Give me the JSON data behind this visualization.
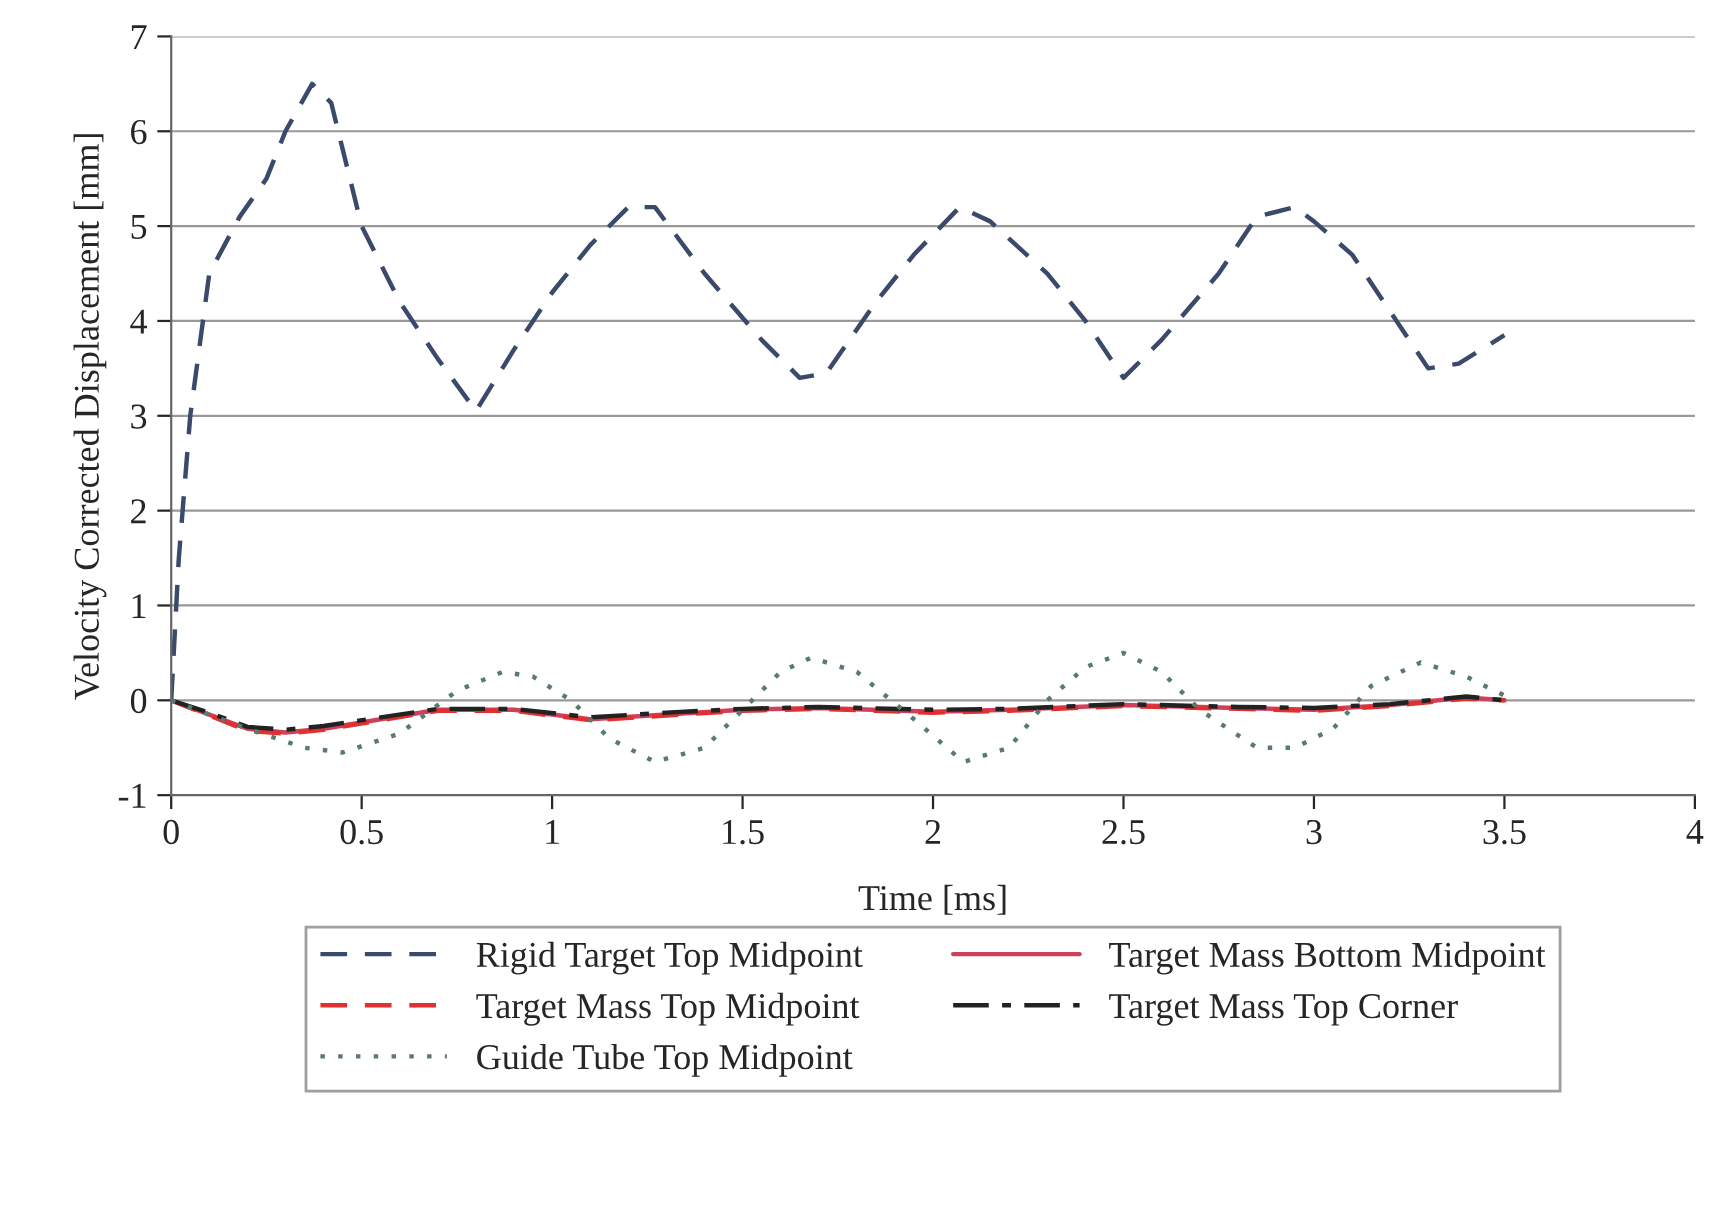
{
  "chart_data": {
    "type": "line",
    "xlabel": "Time [ms]",
    "ylabel": "Velocity Corrected Displacement [mm]",
    "xlim": [
      0,
      4
    ],
    "xticks": [
      0,
      0.5,
      1,
      1.5,
      2,
      2.5,
      3,
      3.5,
      4
    ],
    "ylim": [
      -1,
      7
    ],
    "yticks": [
      -1,
      0,
      1,
      2,
      3,
      4,
      5,
      6,
      7
    ],
    "grid": "y",
    "legend": "bottom",
    "series": [
      {
        "name": "Rigid Target Top Midpoint",
        "color": "#3a4a6b",
        "line_style": "dashed",
        "x": [
          0,
          0.02,
          0.05,
          0.1,
          0.18,
          0.25,
          0.3,
          0.37,
          0.42,
          0.5,
          0.6,
          0.7,
          0.8,
          0.9,
          1.0,
          1.1,
          1.2,
          1.27,
          1.4,
          1.55,
          1.65,
          1.72,
          1.85,
          1.95,
          2.07,
          2.15,
          2.3,
          2.4,
          2.5,
          2.6,
          2.75,
          2.85,
          2.95,
          3.0,
          3.1,
          3.2,
          3.3,
          3.38,
          3.5
        ],
        "values": [
          0,
          1.5,
          3,
          4.5,
          5.1,
          5.5,
          6.0,
          6.5,
          6.3,
          5.0,
          4.2,
          3.6,
          3.05,
          3.7,
          4.3,
          4.8,
          5.2,
          5.2,
          4.5,
          3.8,
          3.4,
          3.45,
          4.2,
          4.7,
          5.2,
          5.05,
          4.5,
          4.0,
          3.4,
          3.8,
          4.5,
          5.1,
          5.2,
          5.05,
          4.7,
          4.1,
          3.5,
          3.55,
          3.85
        ]
      },
      {
        "name": "Target Mass Bottom Midpoint",
        "color": "#d0405a",
        "line_style": "solid",
        "x": [
          0,
          0.1,
          0.2,
          0.3,
          0.4,
          0.55,
          0.7,
          0.9,
          1.1,
          1.3,
          1.5,
          1.7,
          2.0,
          2.2,
          2.5,
          2.8,
          3.0,
          3.2,
          3.4,
          3.5
        ],
        "values": [
          0,
          -0.15,
          -0.3,
          -0.34,
          -0.3,
          -0.2,
          -0.1,
          -0.1,
          -0.2,
          -0.15,
          -0.1,
          -0.08,
          -0.12,
          -0.1,
          -0.05,
          -0.08,
          -0.1,
          -0.05,
          0.03,
          0
        ]
      },
      {
        "name": "Target Mass Top Midpoint",
        "color": "#e03030",
        "line_style": "dashed",
        "x": [
          0,
          0.1,
          0.2,
          0.3,
          0.4,
          0.55,
          0.7,
          0.9,
          1.1,
          1.3,
          1.5,
          1.7,
          2.0,
          2.2,
          2.5,
          2.8,
          3.0,
          3.2,
          3.4,
          3.5
        ],
        "values": [
          0,
          -0.16,
          -0.32,
          -0.35,
          -0.31,
          -0.21,
          -0.11,
          -0.11,
          -0.21,
          -0.16,
          -0.11,
          -0.09,
          -0.13,
          -0.11,
          -0.06,
          -0.09,
          -0.11,
          -0.06,
          0.02,
          0
        ]
      },
      {
        "name": "Target Mass Top Corner",
        "color": "#222222",
        "line_style": "dashdot",
        "x": [
          0,
          0.1,
          0.2,
          0.3,
          0.4,
          0.55,
          0.7,
          0.9,
          1.1,
          1.3,
          1.5,
          1.7,
          2.0,
          2.2,
          2.5,
          2.8,
          3.0,
          3.2,
          3.4,
          3.5
        ],
        "values": [
          0,
          -0.13,
          -0.28,
          -0.31,
          -0.27,
          -0.18,
          -0.09,
          -0.09,
          -0.18,
          -0.13,
          -0.09,
          -0.07,
          -0.1,
          -0.09,
          -0.04,
          -0.07,
          -0.08,
          -0.04,
          0.04,
          0
        ]
      },
      {
        "name": "Guide Tube Top Midpoint",
        "color": "#5a7a70",
        "line_style": "dotted",
        "x": [
          0,
          0.2,
          0.35,
          0.45,
          0.6,
          0.75,
          0.87,
          0.95,
          1.05,
          1.15,
          1.27,
          1.4,
          1.5,
          1.6,
          1.68,
          1.8,
          1.95,
          2.08,
          2.2,
          2.3,
          2.4,
          2.5,
          2.6,
          2.7,
          2.85,
          2.95,
          3.05,
          3.15,
          3.28,
          3.4,
          3.5
        ],
        "values": [
          0,
          -0.3,
          -0.5,
          -0.55,
          -0.35,
          0.1,
          0.3,
          0.25,
          0,
          -0.4,
          -0.65,
          -0.5,
          -0.1,
          0.3,
          0.45,
          0.3,
          -0.2,
          -0.65,
          -0.5,
          0,
          0.35,
          0.5,
          0.3,
          -0.1,
          -0.5,
          -0.5,
          -0.3,
          0.15,
          0.4,
          0.25,
          0.05
        ]
      }
    ]
  }
}
